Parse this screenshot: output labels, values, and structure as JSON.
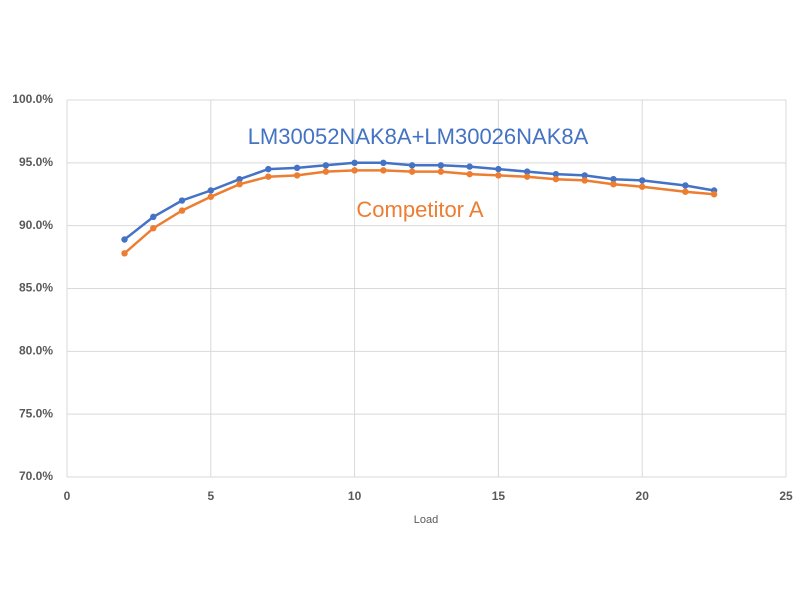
{
  "chart_data": {
    "type": "line",
    "x_label": "Load",
    "xlim": [
      0,
      25
    ],
    "xticks": [
      0,
      5,
      10,
      15,
      20,
      25
    ],
    "ylim": [
      70,
      100
    ],
    "yticks": [
      {
        "value": 70,
        "label": "70.0%"
      },
      {
        "value": 75,
        "label": "75.0%"
      },
      {
        "value": 80,
        "label": "80.0%"
      },
      {
        "value": 85,
        "label": "85.0%"
      },
      {
        "value": 90,
        "label": "90.0%"
      },
      {
        "value": 95,
        "label": "95.0%"
      },
      {
        "value": 100,
        "label": "100.0%"
      }
    ],
    "grid": true,
    "x": [
      2,
      3,
      4,
      5,
      6,
      7,
      8,
      9,
      10,
      11,
      12,
      13,
      14,
      15,
      16,
      17,
      18,
      19,
      20,
      21.5,
      22.5
    ],
    "series": [
      {
        "name": "LM30052NAK8A+LM30026NAK8A",
        "color": "#4472c4",
        "values": [
          88.9,
          90.7,
          92.0,
          92.8,
          93.7,
          94.5,
          94.6,
          94.8,
          95.0,
          95.0,
          94.8,
          94.8,
          94.7,
          94.5,
          94.3,
          94.1,
          94.0,
          93.7,
          93.6,
          93.2,
          92.8
        ]
      },
      {
        "name": "Competitor A",
        "color": "#ed7d31",
        "values": [
          87.8,
          89.8,
          91.2,
          92.3,
          93.3,
          93.9,
          94.0,
          94.3,
          94.4,
          94.4,
          94.3,
          94.3,
          94.1,
          94.0,
          93.9,
          93.7,
          93.6,
          93.3,
          93.1,
          92.7,
          92.5
        ]
      }
    ]
  }
}
